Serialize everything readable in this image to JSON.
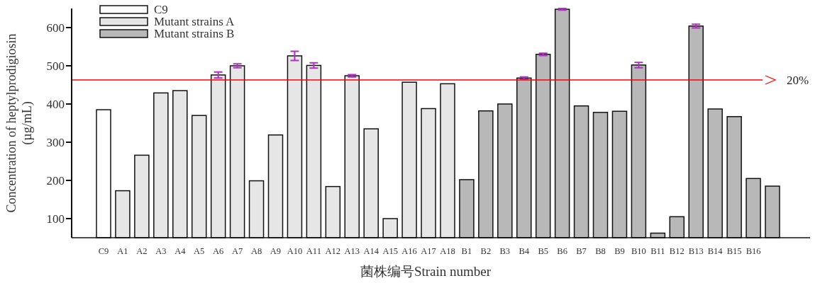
{
  "chart_data": {
    "type": "bar",
    "xlabel": "菌株编号Strain number",
    "ylabel": "Concentration of heptylprodigiosin (µg/mL)",
    "categories": [
      "C9",
      "A1",
      "A2",
      "A3",
      "A4",
      "A5",
      "A6",
      "A7",
      "A8",
      "A9",
      "A10",
      "A11",
      "A12",
      "A13",
      "A14",
      "A15",
      "A16",
      "A17",
      "A18",
      "B1",
      "B2",
      "B3",
      "B4",
      "B5",
      "B6",
      "B7",
      "B8",
      "B9",
      "B10",
      "B11",
      "B12",
      "B13",
      "B14",
      "B15",
      "B16",
      null
    ],
    "series": [
      {
        "name": "C9",
        "color": "#ffffff",
        "values": [
          385,
          null,
          null,
          null,
          null,
          null,
          null,
          null,
          null,
          null,
          null,
          null,
          null,
          null,
          null,
          null,
          null,
          null,
          null,
          null,
          null,
          null,
          null,
          null,
          null,
          null,
          null,
          null,
          null,
          null,
          null,
          null,
          null,
          null,
          null,
          null
        ]
      },
      {
        "name": "Mutant strains A",
        "color": "#e6e6e6",
        "values": [
          null,
          173,
          266,
          429,
          435,
          370,
          476,
          500,
          199,
          319,
          526,
          501,
          184,
          474,
          335,
          100,
          457,
          388,
          453,
          null,
          null,
          null,
          null,
          null,
          null,
          null,
          null,
          null,
          null,
          null,
          null,
          null,
          null,
          null,
          null,
          null
        ],
        "errors": [
          null,
          null,
          null,
          null,
          null,
          null,
          8,
          5,
          null,
          null,
          12,
          7,
          null,
          3,
          null,
          null,
          null,
          null,
          null,
          null,
          null,
          null,
          null,
          null,
          null,
          null,
          null,
          null,
          null,
          null,
          null,
          null,
          null,
          null,
          null,
          null
        ]
      },
      {
        "name": "Mutant strains B",
        "color": "#b8b8b8",
        "values": [
          null,
          null,
          null,
          null,
          null,
          null,
          null,
          null,
          null,
          null,
          null,
          null,
          null,
          null,
          null,
          null,
          null,
          null,
          null,
          202,
          382,
          400,
          468,
          530,
          648,
          395,
          378,
          381,
          502,
          62,
          105,
          604,
          387,
          367,
          205,
          185
        ],
        "errors": [
          null,
          null,
          null,
          null,
          null,
          null,
          null,
          null,
          null,
          null,
          null,
          null,
          null,
          null,
          null,
          null,
          null,
          null,
          null,
          null,
          null,
          null,
          3,
          3,
          2,
          null,
          null,
          null,
          7,
          null,
          null,
          5,
          null,
          null,
          null,
          null
        ]
      }
    ],
    "ylim": [
      50,
      650
    ],
    "yticks": [
      100,
      200,
      300,
      400,
      500,
      600
    ],
    "ref_lines": [
      {
        "axis": "y",
        "value": 463,
        "color": "#ff0000"
      }
    ],
    "annotations": [
      "20%"
    ],
    "legend": "top left",
    "grid": false
  }
}
